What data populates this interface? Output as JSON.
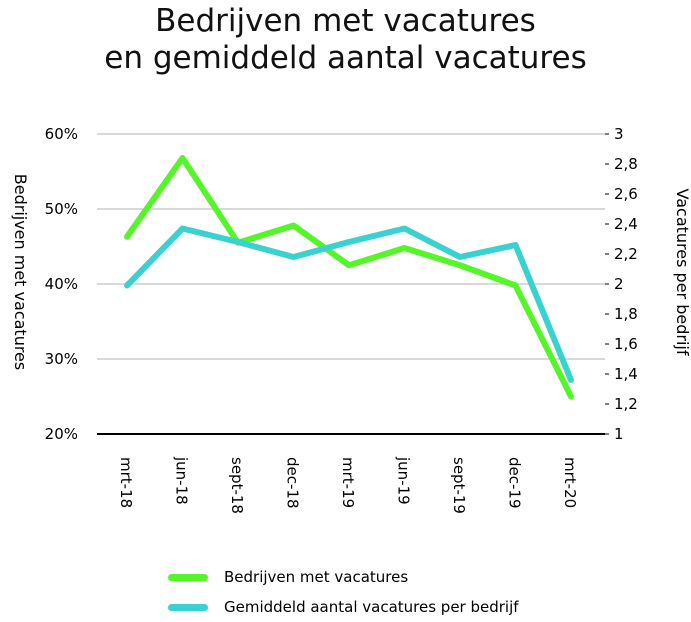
{
  "colors": {
    "series1": "#55f52a",
    "series2": "#3ad1d1",
    "grid": "#b3b3b3",
    "axis": "#000000"
  },
  "chart_data": {
    "type": "line",
    "title": "Bedrijven met vacatures en gemiddeld aantal vacatures",
    "title_lines": [
      "Bedrijven met vacatures",
      "en gemiddeld aantal vacatures"
    ],
    "ylabel": "Bedrijven met vacatures",
    "y2label": "Vacatures per bedrijf",
    "categories": [
      "mrt-18",
      "jun-18",
      "sept-18",
      "dec-18",
      "mrt-19",
      "jun-19",
      "sept-19",
      "dec-19",
      "mrt-20"
    ],
    "ylim": [
      20,
      60
    ],
    "y_ticks": [
      "20%",
      "30%",
      "40%",
      "50%",
      "60%"
    ],
    "y2lim": [
      1,
      3
    ],
    "y2_ticks": [
      "1",
      "1,2",
      "1,4",
      "1,6",
      "1,8",
      "2",
      "2,2",
      "2,4",
      "2,6",
      "2,8",
      "3"
    ],
    "grid": true,
    "legend_position": "bottom",
    "series": [
      {
        "name": "Bedrijven met vacatures",
        "axis": "left",
        "values": [
          46.3,
          56.8,
          45.5,
          47.8,
          42.5,
          44.8,
          42.5,
          39.8,
          25.0
        ]
      },
      {
        "name": "Gemiddeld aantal vacatures per bedrijf",
        "axis": "right",
        "values": [
          1.99,
          2.37,
          2.28,
          2.18,
          2.28,
          2.37,
          2.18,
          2.26,
          1.36
        ]
      }
    ]
  }
}
